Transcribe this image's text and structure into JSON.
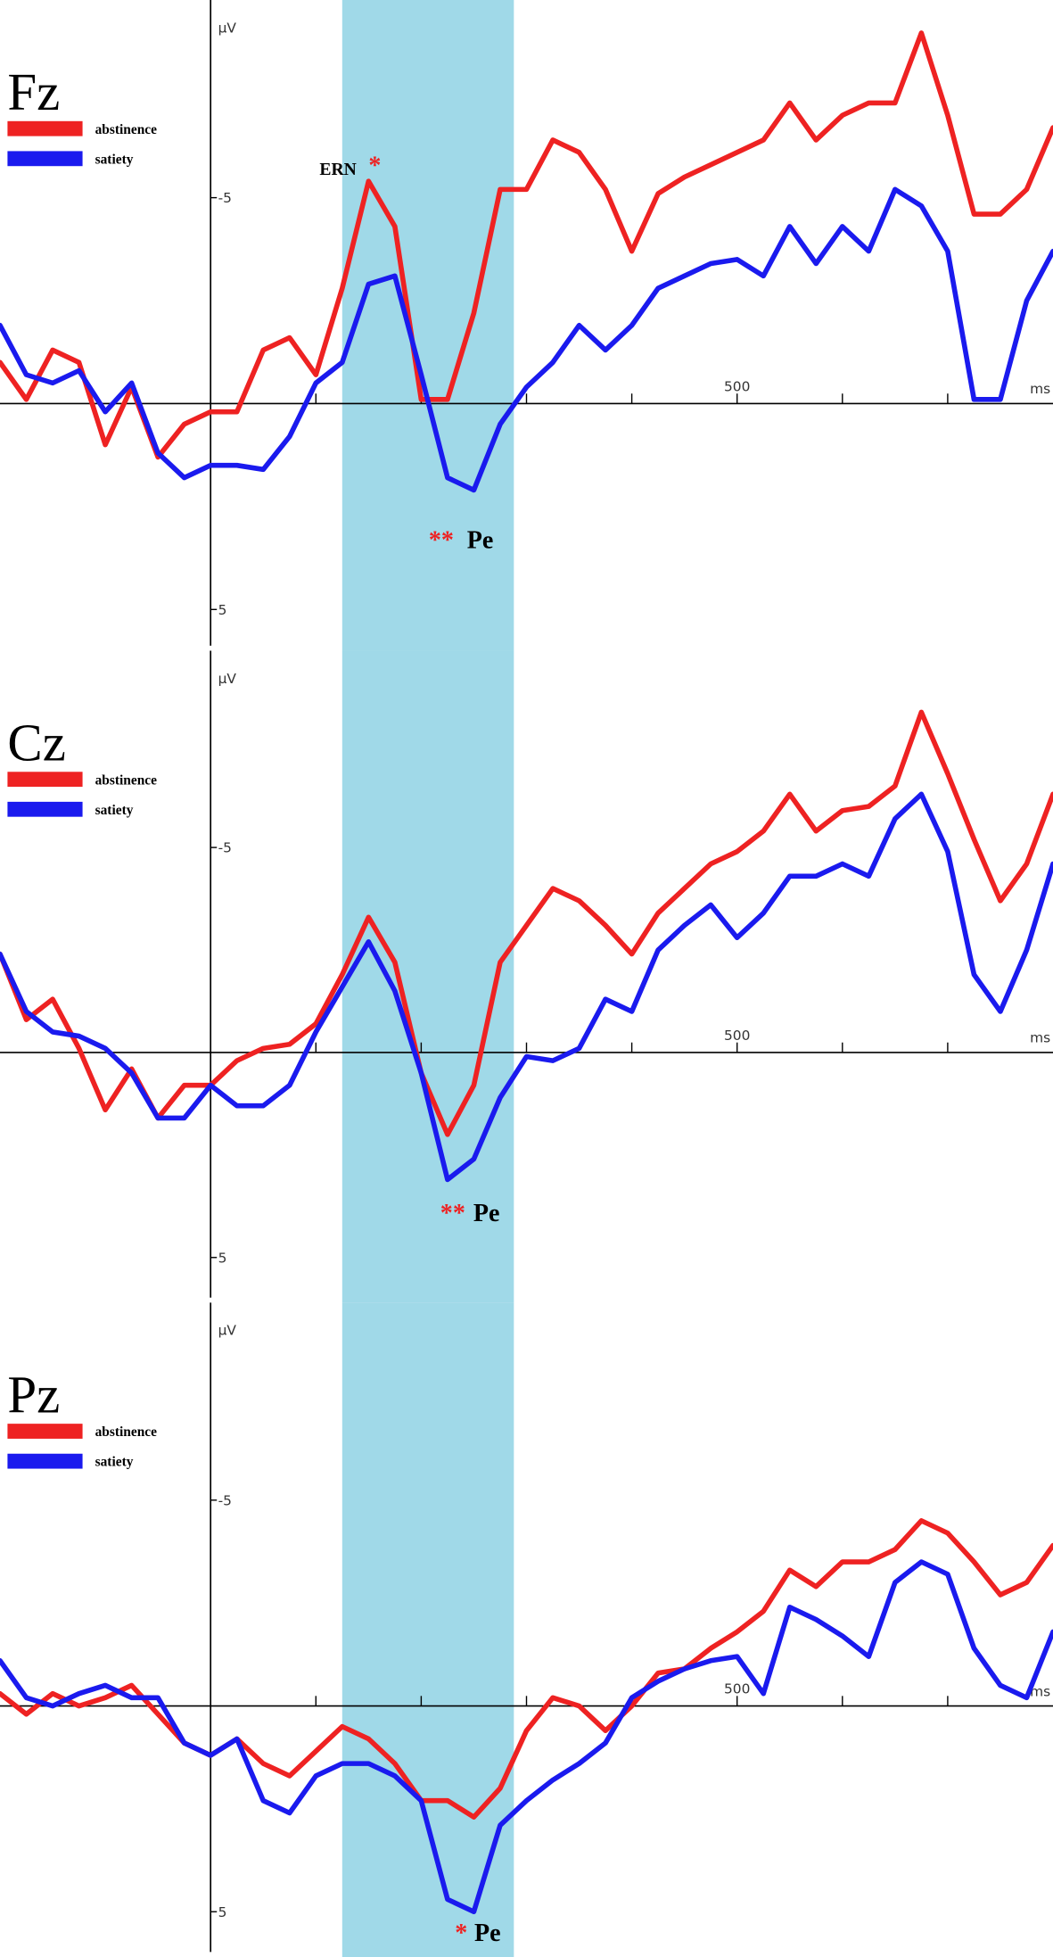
{
  "chart_data": [
    {
      "type": "line",
      "title": "Fz",
      "y_label": "µV",
      "x_label": "ms",
      "x": [
        -200,
        -175,
        -150,
        -125,
        -100,
        -75,
        -50,
        -25,
        0,
        25,
        50,
        75,
        100,
        125,
        150,
        175,
        200,
        225,
        250,
        275,
        300,
        325,
        350,
        375,
        400,
        425,
        450,
        475,
        500,
        525,
        550,
        575,
        600,
        625,
        650,
        675,
        700,
        725,
        750,
        775,
        800
      ],
      "xlim": [
        -200,
        800
      ],
      "xticks": [
        500
      ],
      "x_minor_ticks": [
        100,
        200,
        300,
        400,
        600,
        700
      ],
      "ylim": [
        -9.8,
        6.0
      ],
      "yticks": [
        -5,
        5
      ],
      "y_inverted": true,
      "legend": "upper left",
      "highlight": {
        "range": [
          125,
          288
        ],
        "color": "#a0d9e8"
      },
      "series": [
        {
          "name": "abstinence",
          "color": "#ee2222",
          "values": [
            -1.0,
            -0.1,
            -1.3,
            -1.0,
            1.0,
            -0.4,
            1.3,
            0.5,
            0.2,
            0.2,
            -1.3,
            -1.6,
            -0.7,
            -2.8,
            -5.4,
            -4.3,
            -0.1,
            -0.1,
            -2.2,
            -5.2,
            -5.2,
            -6.4,
            -6.1,
            -5.2,
            -3.7,
            -5.1,
            -5.5,
            -5.8,
            -6.1,
            -6.4,
            -7.3,
            -6.4,
            -7.0,
            -7.3,
            -7.3,
            -9.0,
            -7.0,
            -4.6,
            -4.6,
            -5.2,
            -6.7
          ]
        },
        {
          "name": "satiety",
          "color": "#1a1aee",
          "values": [
            -1.9,
            -0.7,
            -0.5,
            -0.8,
            0.2,
            -0.5,
            1.2,
            1.8,
            1.5,
            1.5,
            1.6,
            0.8,
            -0.5,
            -1.0,
            -2.9,
            -3.1,
            -0.7,
            1.8,
            2.1,
            0.5,
            -0.4,
            -1.0,
            -1.9,
            -1.3,
            -1.9,
            -2.8,
            -3.1,
            -3.4,
            -3.5,
            -3.1,
            -4.3,
            -3.4,
            -4.3,
            -3.7,
            -5.2,
            -4.8,
            -3.7,
            -0.1,
            -0.1,
            -2.5,
            -3.7
          ]
        }
      ],
      "annotations": [
        {
          "text": "ERN",
          "x": 121,
          "y": -5.7,
          "color": "#000000",
          "size": 14
        },
        {
          "text": "*",
          "x": 156,
          "y": -5.8,
          "color": "#ee2222",
          "size": 20
        },
        {
          "text": "**",
          "x": 219,
          "y": 3.3,
          "color": "#ee2222",
          "size": 20
        },
        {
          "text": "Pe",
          "x": 256,
          "y": 3.3,
          "color": "#000000",
          "size": 20
        }
      ]
    },
    {
      "type": "line",
      "title": "Cz",
      "y_label": "µV",
      "x_label": "ms",
      "x": [
        -200,
        -175,
        -150,
        -125,
        -100,
        -75,
        -50,
        -25,
        0,
        25,
        50,
        75,
        100,
        125,
        150,
        175,
        200,
        225,
        250,
        275,
        300,
        325,
        350,
        375,
        400,
        425,
        450,
        475,
        500,
        525,
        550,
        575,
        600,
        625,
        650,
        675,
        700,
        725,
        750,
        775,
        800
      ],
      "xlim": [
        -200,
        800
      ],
      "xticks": [
        500
      ],
      "x_minor_ticks": [
        100,
        200,
        300,
        400,
        600,
        700
      ],
      "ylim": [
        -9.8,
        6.1
      ],
      "yticks": [
        -5,
        5
      ],
      "y_inverted": true,
      "legend": "upper left",
      "highlight": {
        "range": [
          125,
          288
        ],
        "color": "#a0d9e8"
      },
      "series": [
        {
          "name": "abstinence",
          "color": "#ee2222",
          "values": [
            -2.4,
            -0.8,
            -1.3,
            -0.1,
            1.4,
            0.4,
            1.6,
            0.8,
            0.8,
            0.2,
            -0.1,
            -0.2,
            -0.7,
            -1.9,
            -3.3,
            -2.2,
            0.5,
            2.0,
            0.8,
            -2.2,
            -3.1,
            -4.0,
            -3.7,
            -3.1,
            -2.4,
            -3.4,
            -4.0,
            -4.6,
            -4.9,
            -5.4,
            -6.3,
            -5.4,
            -5.9,
            -6.0,
            -6.5,
            -8.3,
            -6.8,
            -5.2,
            -3.7,
            -4.6,
            -6.3
          ]
        },
        {
          "name": "satiety",
          "color": "#1a1aee",
          "values": [
            -2.4,
            -1.0,
            -0.5,
            -0.4,
            -0.1,
            0.5,
            1.6,
            1.6,
            0.8,
            1.3,
            1.3,
            0.8,
            -0.5,
            -1.6,
            -2.7,
            -1.5,
            0.5,
            3.1,
            2.6,
            1.1,
            0.1,
            0.2,
            -0.1,
            -1.3,
            -1.0,
            -2.5,
            -3.1,
            -3.6,
            -2.8,
            -3.4,
            -4.3,
            -4.3,
            -4.6,
            -4.3,
            -5.7,
            -6.3,
            -4.9,
            -1.9,
            -1.0,
            -2.5,
            -4.6
          ]
        }
      ],
      "annotations": [
        {
          "text": "**",
          "x": 230,
          "y": 3.9,
          "color": "#ee2222",
          "size": 20
        },
        {
          "text": "Pe",
          "x": 262,
          "y": 3.9,
          "color": "#000000",
          "size": 20
        }
      ]
    },
    {
      "type": "line",
      "title": "Pz",
      "y_label": "µV",
      "x_label": "ms",
      "x": [
        -200,
        -175,
        -150,
        -125,
        -100,
        -75,
        -50,
        -25,
        0,
        25,
        50,
        75,
        100,
        125,
        150,
        175,
        200,
        225,
        250,
        275,
        300,
        325,
        350,
        375,
        400,
        425,
        450,
        475,
        500,
        525,
        550,
        575,
        600,
        625,
        650,
        675,
        700,
        725,
        750,
        775,
        800
      ],
      "xlim": [
        -200,
        800
      ],
      "xticks": [
        500
      ],
      "x_minor_ticks": [
        100,
        200,
        300,
        400,
        600,
        700
      ],
      "ylim": [
        -9.8,
        6.1
      ],
      "yticks": [
        -5,
        5
      ],
      "y_inverted": true,
      "legend": "upper left",
      "highlight": {
        "range": [
          125,
          288
        ],
        "color": "#a0d9e8"
      },
      "series": [
        {
          "name": "abstinence",
          "color": "#ee2222",
          "values": [
            -0.3,
            0.2,
            -0.3,
            0,
            -0.2,
            -0.5,
            0.2,
            0.9,
            1.2,
            0.8,
            1.4,
            1.7,
            1.1,
            0.5,
            0.8,
            1.4,
            2.3,
            2.3,
            2.7,
            2.0,
            0.6,
            -0.2,
            0,
            0.6,
            0,
            -0.8,
            -0.9,
            -1.4,
            -1.8,
            -2.3,
            -3.3,
            -2.9,
            -3.5,
            -3.5,
            -3.8,
            -4.5,
            -4.2,
            -3.5,
            -2.7,
            -3.0,
            -3.9
          ]
        },
        {
          "name": "satiety",
          "color": "#1a1aee",
          "values": [
            -1.1,
            -0.2,
            0,
            -0.3,
            -0.5,
            -0.2,
            -0.2,
            0.9,
            1.2,
            0.8,
            2.3,
            2.6,
            1.7,
            1.4,
            1.4,
            1.7,
            2.3,
            4.7,
            5.0,
            2.9,
            2.3,
            1.8,
            1.4,
            0.9,
            -0.2,
            -0.6,
            -0.9,
            -1.1,
            -1.2,
            -0.3,
            -2.4,
            -2.1,
            -1.7,
            -1.2,
            -3.0,
            -3.5,
            -3.2,
            -1.4,
            -0.5,
            -0.2,
            -1.8
          ]
        }
      ],
      "annotations": [
        {
          "text": "*",
          "x": 238,
          "y": 5.5,
          "color": "#ee2222",
          "size": 20
        },
        {
          "text": "Pe",
          "x": 263,
          "y": 5.5,
          "color": "#000000",
          "size": 20
        }
      ]
    }
  ]
}
